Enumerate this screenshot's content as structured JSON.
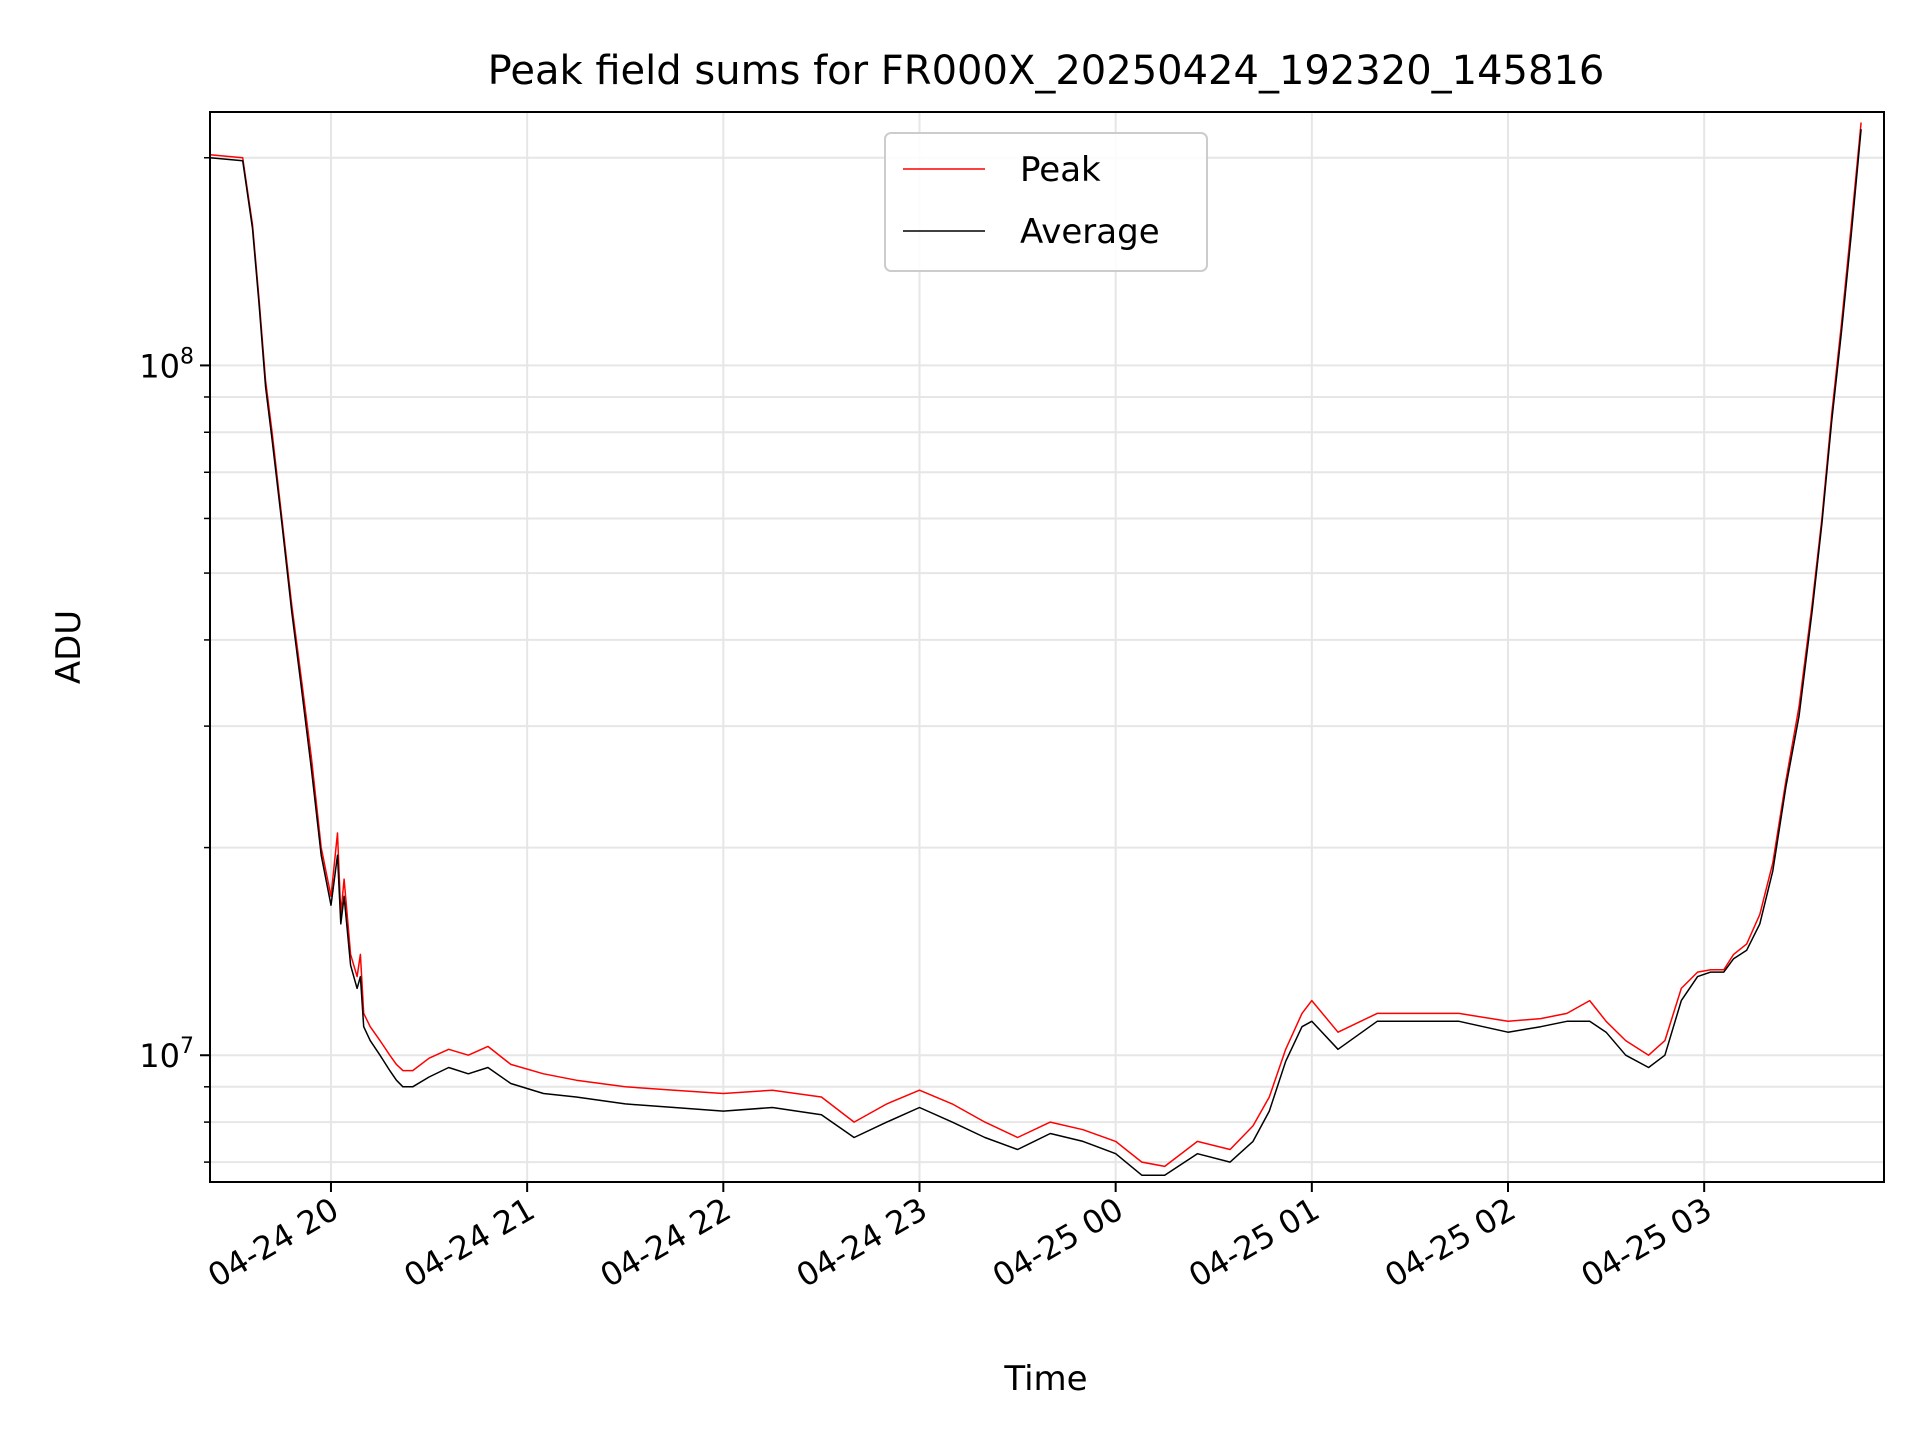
{
  "chart_data": {
    "type": "line",
    "title": "Peak field sums for FR000X_20250424_192320_145816",
    "xlabel": "Time",
    "ylabel": "ADU",
    "y_scale": "log",
    "ylim": [
      6550000.0,
      233000000.0
    ],
    "xlim": [
      "2025-04-24 19:23",
      "2025-04-25 03:55"
    ],
    "grid": true,
    "legend_position": "top-center",
    "x_tick_labels": [
      "04-24 20",
      "04-24 21",
      "04-24 22",
      "04-24 23",
      "04-25 00",
      "04-25 01",
      "04-25 02",
      "04-25 03"
    ],
    "y_tick_labels": [
      {
        "value": 10000000.0,
        "base": "10",
        "exp": "7"
      },
      {
        "value": 100000000.0,
        "base": "10",
        "exp": "8"
      }
    ],
    "series": [
      {
        "name": "Peak",
        "color": "#ff0000",
        "x": [
          "2025-04-24 19:23",
          "2025-04-24 19:33",
          "2025-04-24 19:36",
          "2025-04-24 19:38",
          "2025-04-24 19:40",
          "2025-04-24 19:42",
          "2025-04-24 19:45",
          "2025-04-24 19:48",
          "2025-04-24 19:51",
          "2025-04-24 19:54",
          "2025-04-24 19:57",
          "2025-04-24 20:00",
          "2025-04-24 20:02",
          "2025-04-24 20:03",
          "2025-04-24 20:04",
          "2025-04-24 20:06",
          "2025-04-24 20:08",
          "2025-04-24 20:09",
          "2025-04-24 20:10",
          "2025-04-24 20:12",
          "2025-04-24 20:15",
          "2025-04-24 20:18",
          "2025-04-24 20:20",
          "2025-04-24 20:22",
          "2025-04-24 20:25",
          "2025-04-24 20:30",
          "2025-04-24 20:36",
          "2025-04-24 20:42",
          "2025-04-24 20:48",
          "2025-04-24 20:55",
          "2025-04-24 21:05",
          "2025-04-24 21:15",
          "2025-04-24 21:30",
          "2025-04-24 21:45",
          "2025-04-24 22:00",
          "2025-04-24 22:15",
          "2025-04-24 22:30",
          "2025-04-24 22:40",
          "2025-04-24 22:50",
          "2025-04-24 23:00",
          "2025-04-24 23:10",
          "2025-04-24 23:20",
          "2025-04-24 23:30",
          "2025-04-24 23:40",
          "2025-04-24 23:50",
          "2025-04-25 00:00",
          "2025-04-25 00:08",
          "2025-04-25 00:15",
          "2025-04-25 00:25",
          "2025-04-25 00:35",
          "2025-04-25 00:42",
          "2025-04-25 00:47",
          "2025-04-25 00:52",
          "2025-04-25 00:57",
          "2025-04-25 01:00",
          "2025-04-25 01:08",
          "2025-04-25 01:20",
          "2025-04-25 01:35",
          "2025-04-25 01:45",
          "2025-04-25 02:00",
          "2025-04-25 02:10",
          "2025-04-25 02:18",
          "2025-04-25 02:25",
          "2025-04-25 02:30",
          "2025-04-25 02:36",
          "2025-04-25 02:43",
          "2025-04-25 02:48",
          "2025-04-25 02:53",
          "2025-04-25 02:58",
          "2025-04-25 03:02",
          "2025-04-25 03:06",
          "2025-04-25 03:09",
          "2025-04-25 03:13",
          "2025-04-25 03:17",
          "2025-04-25 03:21",
          "2025-04-25 03:25",
          "2025-04-25 03:29",
          "2025-04-25 03:33",
          "2025-04-25 03:36",
          "2025-04-25 03:39",
          "2025-04-25 03:42",
          "2025-04-25 03:45",
          "2025-04-25 03:48"
        ],
        "y": [
          202000000.0,
          200000000.0,
          160000000.0,
          125000000.0,
          95000000.0,
          80000000.0,
          60000000.0,
          45000000.0,
          35000000.0,
          27000000.0,
          20000000.0,
          17000000.0,
          21000000.0,
          16000000.0,
          18000000.0,
          14000000.0,
          13000000.0,
          14000000.0,
          11500000.0,
          11000000.0,
          10500000.0,
          10000000.0,
          9700000.0,
          9500000.0,
          9500000.0,
          9900000.0,
          10200000.0,
          10000000.0,
          10300000.0,
          9700000.0,
          9400000.0,
          9200000.0,
          9000000.0,
          8900000.0,
          8800000.0,
          8900000.0,
          8700000.0,
          8000000.0,
          8500000.0,
          8900000.0,
          8500000.0,
          8000000.0,
          7600000.0,
          8000000.0,
          7800000.0,
          7500000.0,
          7000000.0,
          6900000.0,
          7500000.0,
          7300000.0,
          7900000.0,
          8700000.0,
          10200000.0,
          11500000.0,
          12000000.0,
          10800000.0,
          11500000.0,
          11500000.0,
          11500000.0,
          11200000.0,
          11300000.0,
          11500000.0,
          12000000.0,
          11200000.0,
          10500000.0,
          10000000.0,
          10500000.0,
          12500000.0,
          13200000.0,
          13300000.0,
          13300000.0,
          14000000.0,
          14500000.0,
          16000000.0,
          19000000.0,
          25000000.0,
          32000000.0,
          45000000.0,
          60000000.0,
          85000000.0,
          115000000.0,
          160000000.0,
          225000000.0
        ]
      },
      {
        "name": "Average",
        "color": "#000000",
        "x": [
          "2025-04-24 19:23",
          "2025-04-24 19:33",
          "2025-04-24 19:36",
          "2025-04-24 19:38",
          "2025-04-24 19:40",
          "2025-04-24 19:42",
          "2025-04-24 19:45",
          "2025-04-24 19:48",
          "2025-04-24 19:51",
          "2025-04-24 19:54",
          "2025-04-24 19:57",
          "2025-04-24 20:00",
          "2025-04-24 20:02",
          "2025-04-24 20:03",
          "2025-04-24 20:04",
          "2025-04-24 20:06",
          "2025-04-24 20:08",
          "2025-04-24 20:09",
          "2025-04-24 20:10",
          "2025-04-24 20:12",
          "2025-04-24 20:15",
          "2025-04-24 20:18",
          "2025-04-24 20:20",
          "2025-04-24 20:22",
          "2025-04-24 20:25",
          "2025-04-24 20:30",
          "2025-04-24 20:36",
          "2025-04-24 20:42",
          "2025-04-24 20:48",
          "2025-04-24 20:55",
          "2025-04-24 21:05",
          "2025-04-24 21:15",
          "2025-04-24 21:30",
          "2025-04-24 21:45",
          "2025-04-24 22:00",
          "2025-04-24 22:15",
          "2025-04-24 22:30",
          "2025-04-24 22:40",
          "2025-04-24 22:50",
          "2025-04-24 23:00",
          "2025-04-24 23:10",
          "2025-04-24 23:20",
          "2025-04-24 23:30",
          "2025-04-24 23:40",
          "2025-04-24 23:50",
          "2025-04-25 00:00",
          "2025-04-25 00:08",
          "2025-04-25 00:15",
          "2025-04-25 00:25",
          "2025-04-25 00:35",
          "2025-04-25 00:42",
          "2025-04-25 00:47",
          "2025-04-25 00:52",
          "2025-04-25 00:57",
          "2025-04-25 01:00",
          "2025-04-25 01:08",
          "2025-04-25 01:20",
          "2025-04-25 01:35",
          "2025-04-25 01:45",
          "2025-04-25 02:00",
          "2025-04-25 02:10",
          "2025-04-25 02:18",
          "2025-04-25 02:25",
          "2025-04-25 02:30",
          "2025-04-25 02:36",
          "2025-04-25 02:43",
          "2025-04-25 02:48",
          "2025-04-25 02:53",
          "2025-04-25 02:58",
          "2025-04-25 03:02",
          "2025-04-25 03:06",
          "2025-04-25 03:09",
          "2025-04-25 03:13",
          "2025-04-25 03:17",
          "2025-04-25 03:21",
          "2025-04-25 03:25",
          "2025-04-25 03:29",
          "2025-04-25 03:33",
          "2025-04-25 03:36",
          "2025-04-25 03:39",
          "2025-04-25 03:42",
          "2025-04-25 03:45",
          "2025-04-25 03:48"
        ],
        "y": [
          200000000.0,
          198000000.0,
          158000000.0,
          123000000.0,
          93000000.0,
          78000000.0,
          59000000.0,
          44000000.0,
          34000000.0,
          26000000.0,
          19500000.0,
          16500000.0,
          19500000.0,
          15500000.0,
          17000000.0,
          13500000.0,
          12500000.0,
          13000000.0,
          11000000.0,
          10500000.0,
          10000000.0,
          9500000.0,
          9200000.0,
          9000000.0,
          9000000.0,
          9300000.0,
          9600000.0,
          9400000.0,
          9600000.0,
          9100000.0,
          8800000.0,
          8700000.0,
          8500000.0,
          8400000.0,
          8300000.0,
          8400000.0,
          8200000.0,
          7600000.0,
          8000000.0,
          8400000.0,
          8000000.0,
          7600000.0,
          7300000.0,
          7700000.0,
          7500000.0,
          7200000.0,
          6700000.0,
          6700000.0,
          7200000.0,
          7000000.0,
          7500000.0,
          8300000.0,
          9800000.0,
          11000000.0,
          11200000.0,
          10200000.0,
          11200000.0,
          11200000.0,
          11200000.0,
          10800000.0,
          11000000.0,
          11200000.0,
          11200000.0,
          10800000.0,
          10000000.0,
          9600000.0,
          10000000.0,
          12000000.0,
          13000000.0,
          13200000.0,
          13200000.0,
          13800000.0,
          14200000.0,
          15500000.0,
          18500000.0,
          24500000.0,
          31000000.0,
          44000000.0,
          59000000.0,
          83000000.0,
          112000000.0,
          155000000.0,
          220000000.0
        ]
      }
    ]
  }
}
